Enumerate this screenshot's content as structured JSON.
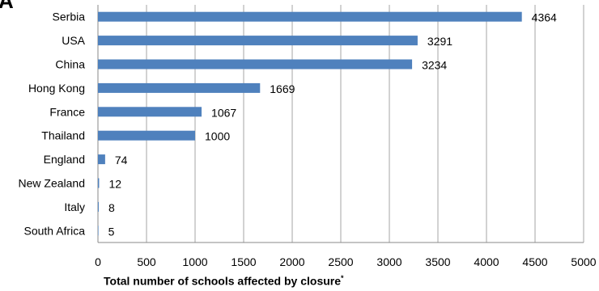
{
  "panel_label": "A",
  "chart_data": {
    "type": "bar",
    "orientation": "horizontal",
    "categories": [
      "Serbia",
      "USA",
      "China",
      "Hong Kong",
      "France",
      "Thailand",
      "England",
      "New Zealand",
      "Italy",
      "South Africa"
    ],
    "values": [
      4364,
      3291,
      3234,
      1669,
      1067,
      1000,
      74,
      12,
      8,
      5
    ],
    "data_labels": [
      "4364",
      "3291",
      "3234",
      "1669",
      "1067",
      "1000",
      "74",
      "12",
      "8",
      "5"
    ],
    "xlabel": "Total number of schools affected by closure",
    "xlabel_marker": "*",
    "ylabel": "",
    "xlim": [
      0,
      5000
    ],
    "xticks": [
      "0",
      "500",
      "1000",
      "1500",
      "2000",
      "2500",
      "3000",
      "3500",
      "4000",
      "4500",
      "5000"
    ],
    "bar_color": "#4f81bd",
    "gridlines": "vertical",
    "grid_color": "#a6a6a6",
    "legend": "none"
  }
}
